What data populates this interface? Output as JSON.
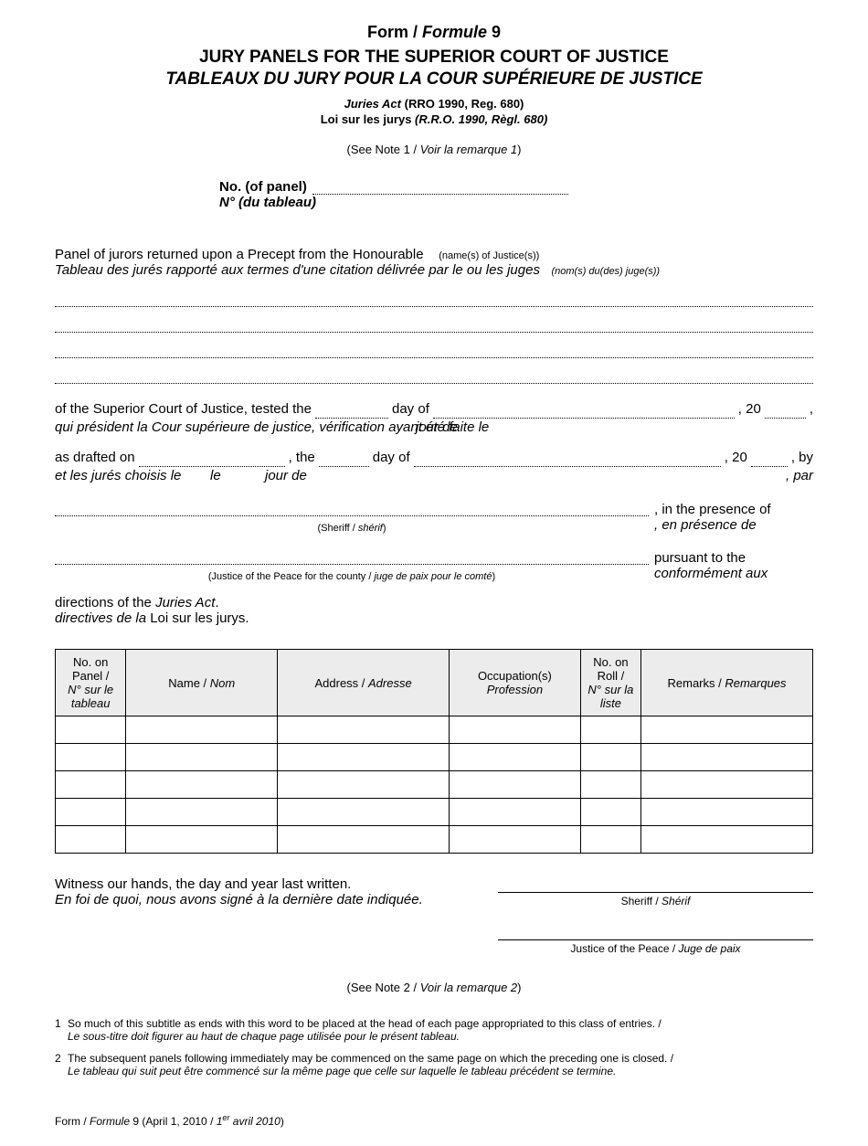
{
  "header": {
    "form_label": "Form / ",
    "form_label_it": "Formule",
    "form_number": " 9",
    "title_en": "JURY PANELS FOR THE SUPERIOR COURT OF JUSTICE",
    "title_fr": "TABLEAUX DU JURY POUR LA COUR SUPÉRIEURE DE JUSTICE",
    "act_en_prefix": "Juries Act",
    "act_en_suffix": " (RRO 1990, Reg. 680)",
    "act_fr_prefix": "Loi sur les jurys ",
    "act_fr_suffix": "(R.R.O. 1990, Règl. 680)",
    "note1": "(See Note 1 / ",
    "note1_it": "Voir la remarque 1",
    "note1_close": ")"
  },
  "panel_no": {
    "label_en": "No. (of panel)",
    "label_fr": "N° (du tableau)"
  },
  "precept": {
    "en_text": "Panel of jurors returned upon a Precept from the Honourable",
    "en_hint": "(name(s) of Justice(s))",
    "fr_text": "Tableau des jurés rapporté aux termes d'une citation délivrée par le ou les juges",
    "fr_hint": "(nom(s) du(des) juge(s))"
  },
  "tested": {
    "line1_en_a": "of the Superior Court of Justice, tested the",
    "line1_en_b": "day of",
    "line1_en_c": ", 20",
    "line1_en_d": ",",
    "line1_fr_a": "qui président la Cour supérieure de justice, vérification ayant été faite le",
    "line1_fr_b": "jour de",
    "line2_en_a": "as drafted on",
    "line2_en_b": ", the",
    "line2_en_c": "day of",
    "line2_en_d": ", 20",
    "line2_en_e": ", by",
    "line2_fr_a": "et les jurés choisis le",
    "line2_fr_b": "le",
    "line2_fr_c": "jour de",
    "line2_fr_d": ", par"
  },
  "sheriff": {
    "caption": "(Sheriff / ",
    "caption_it": "shérif",
    "caption_close": ")",
    "right_en": ", in the presence of",
    "right_fr": ", en présence de"
  },
  "jp": {
    "caption": "(Justice of the Peace for the county / ",
    "caption_it": "juge de paix pour le comté",
    "caption_close": ")",
    "right_en": "pursuant to the",
    "right_fr": "conformément aux"
  },
  "directions": {
    "en_a": "directions of the ",
    "en_it": "Juries Act",
    "en_b": ".",
    "fr_a": "directives de la ",
    "fr_plain": "Loi sur les jurys."
  },
  "table": {
    "headers": {
      "col1_a": "No. on Panel /",
      "col1_b": "N° sur le tableau",
      "col2": "Name / ",
      "col2_it": "Nom",
      "col3": "Address / ",
      "col3_it": "Adresse",
      "col4_a": "Occupation(s)",
      "col4_b": "Profession",
      "col5_a": "No. on Roll /",
      "col5_b": "N° sur la liste",
      "col6": "Remarks / ",
      "col6_it": "Remarques"
    },
    "col_widths": [
      "70px",
      "150px",
      "170px",
      "130px",
      "60px",
      "170px"
    ],
    "row_count": 5,
    "header_bg": "#ececec",
    "border_color": "#000000"
  },
  "witness": {
    "en": "Witness our hands, the day and year last written.",
    "fr": "En foi de quoi, nous avons signé à la dernière date indiquée.",
    "sig1": "Sheriff / ",
    "sig1_it": "Shérif",
    "sig2": "Justice of the Peace / ",
    "sig2_it": "Juge de paix"
  },
  "note2": {
    "text": "(See Note 2 / ",
    "text_it": "Voir la remarque 2",
    "close": ")"
  },
  "footnotes": {
    "n1_num": "1",
    "n1_en": "So much of this subtitle as ends with this word to be placed at the head of each page appropriated to this class of entries. /",
    "n1_fr": "Le sous-titre doit figurer au haut de chaque page utilisée pour le présent tableau.",
    "n2_num": "2",
    "n2_en": "The subsequent panels following immediately may be commenced on the same page on which the preceding one is closed. /",
    "n2_fr": "Le tableau qui suit peut être commencé sur la même page que celle sur laquelle le tableau précédent se termine."
  },
  "footer": {
    "a": "Form / ",
    "a_it": "Formule",
    "b": " 9 (April 1, 2010 / ",
    "c_it": "1",
    "c_sup": "er",
    "c_it2": " avril 2010",
    "d": ")"
  }
}
